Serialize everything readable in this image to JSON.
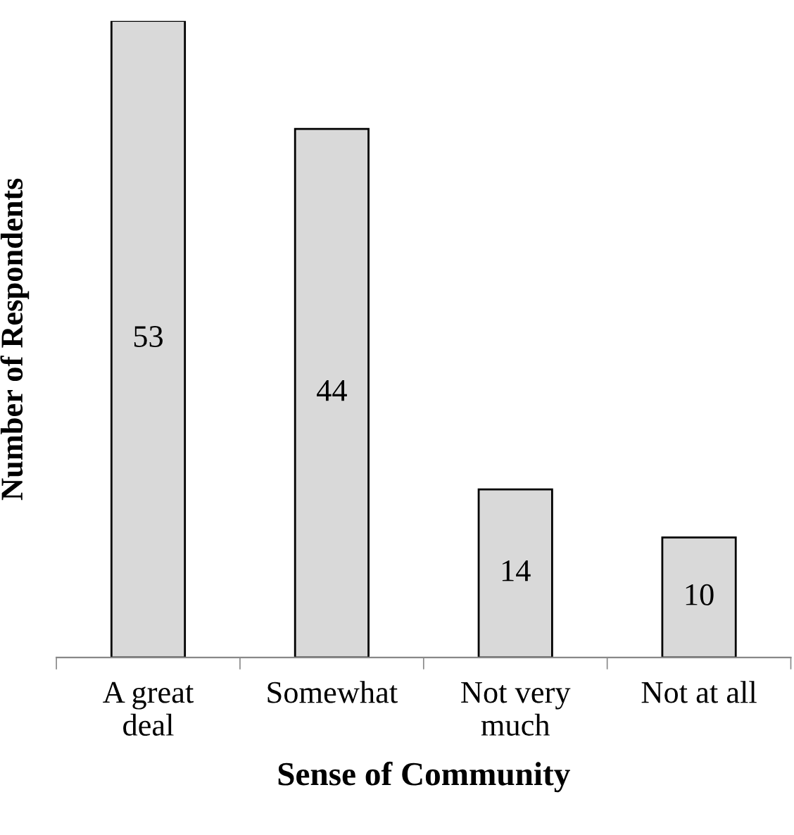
{
  "chart_data": {
    "type": "bar",
    "xlabel": "Sense of Community",
    "ylabel": "Number of Respondents",
    "categories": [
      "A great deal",
      "Somewhat",
      "Not very much",
      "Not at all"
    ],
    "values": [
      53,
      44,
      14,
      10
    ],
    "color": "#d9d9d9",
    "data_labels": true,
    "grid": false,
    "legend": false
  }
}
